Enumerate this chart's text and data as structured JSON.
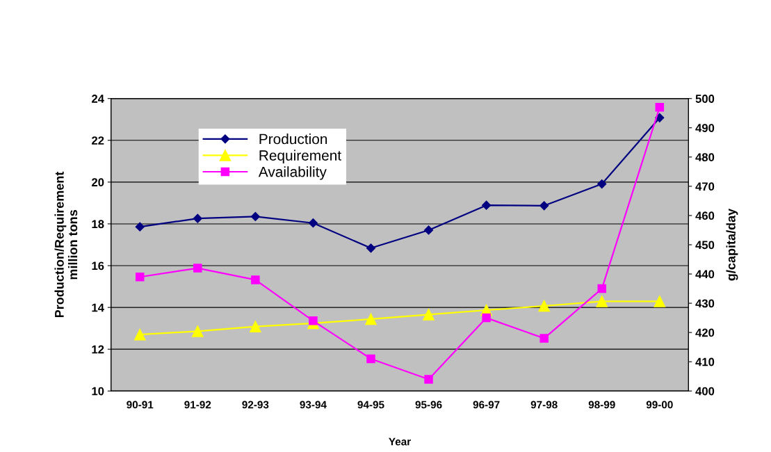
{
  "chart_data": {
    "type": "line",
    "xlabel": "Year",
    "ylabel": "Production/Requirement\nmillion tons",
    "y2label": "g/capita/day",
    "categories": [
      "90-91",
      "91-92",
      "92-93",
      "93-94",
      "94-95",
      "95-96",
      "96-97",
      "97-98",
      "98-99",
      "99-00"
    ],
    "series": [
      {
        "name": "Production",
        "color": "#000080",
        "marker": "diamond",
        "values": [
          17.86,
          18.26,
          18.35,
          18.04,
          16.84,
          17.7,
          18.89,
          18.87,
          19.91,
          23.08
        ]
      },
      {
        "name": "Requirement",
        "color": "#ffff00",
        "marker": "triangle",
        "values": [
          12.7,
          12.86,
          13.08,
          13.24,
          13.44,
          13.66,
          13.87,
          14.07,
          14.29,
          14.29
        ]
      },
      {
        "name": "Availability",
        "color": "#ff00ff",
        "marker": "square",
        "axis": "y2",
        "values": [
          439,
          442,
          438,
          424,
          411,
          404,
          425,
          418,
          435,
          497
        ]
      }
    ],
    "ylim": [
      10,
      24
    ],
    "yticks": [
      10,
      12,
      14,
      16,
      18,
      20,
      22,
      24
    ],
    "y2lim": [
      400,
      500
    ],
    "y2ticks": [
      400,
      410,
      420,
      430,
      440,
      450,
      460,
      470,
      480,
      490,
      500
    ],
    "grid": "y",
    "legend": "top left",
    "line_style": "solid"
  }
}
